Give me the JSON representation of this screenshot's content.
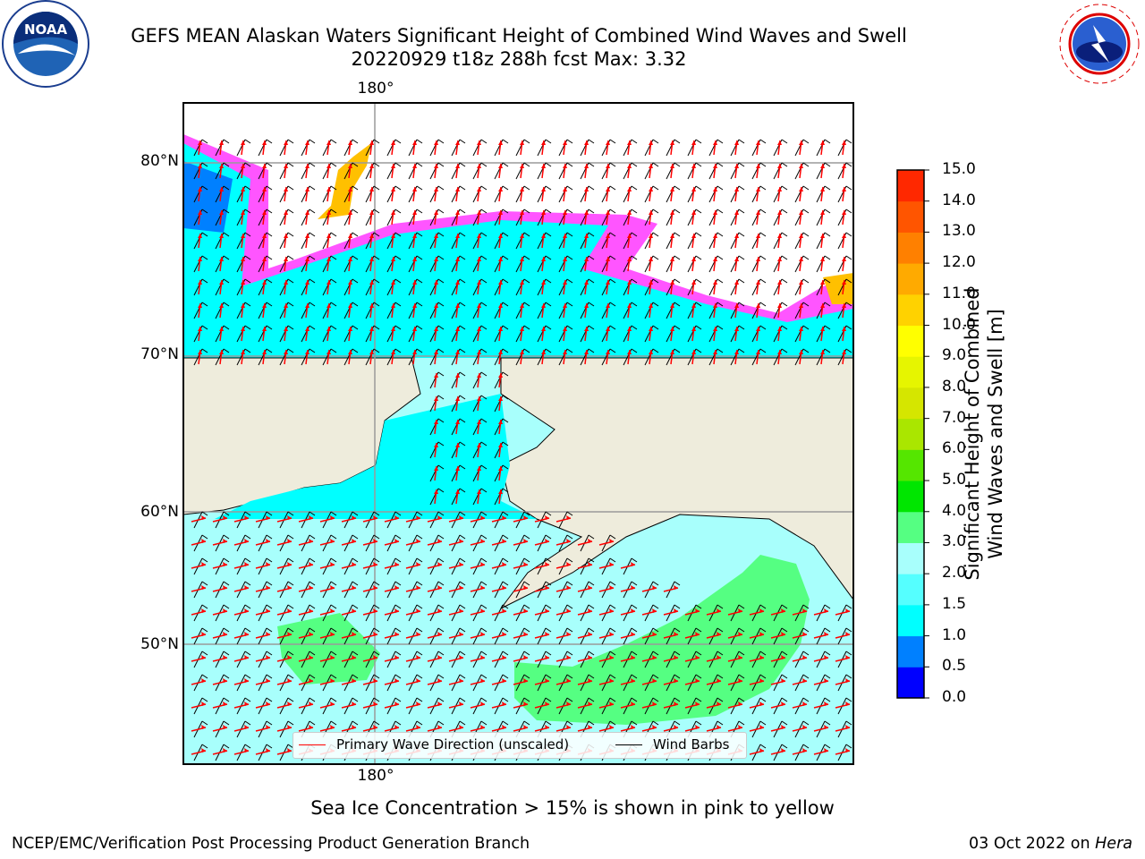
{
  "title": {
    "line1": "GEFS MEAN Alaskan Waters Significant Height of Combined Wind Waves and Swell",
    "line2": "20220929 t18z 288h fcst   Max: 3.32"
  },
  "logos": {
    "left": {
      "name": "NOAA",
      "text": "NOAA"
    },
    "right": {
      "name": "National Weather Service",
      "text": "NATIONAL WEATHER SERVICE"
    }
  },
  "map": {
    "lat_labels": [
      "80°N",
      "70°N",
      "60°N",
      "50°N"
    ],
    "lon_label_top": "180°",
    "lon_label_bottom": "180°",
    "colors": {
      "land": "#eeecdc",
      "ocean_low": "#00ffff",
      "ocean_mid": "#a8fffc",
      "ocean_high": "#55ff82",
      "ice_edge": "#ff55ff",
      "wave_arrow": "#ff0000",
      "wind_barb": "#000000"
    },
    "legend": {
      "wave_direction": "Primary Wave Direction (unscaled)",
      "wind_barbs": "Wind Barbs"
    }
  },
  "colorbar": {
    "label_line1": "Significant Height of Combined",
    "label_line2": "Wind Waves and Swell [m]",
    "ticks": [
      "15.0",
      "14.0",
      "13.0",
      "12.0",
      "11.0",
      "10.0",
      "9.0",
      "8.0",
      "7.0",
      "6.0",
      "5.0",
      "4.0",
      "3.0",
      "2.0",
      "1.5",
      "1.0",
      "0.5",
      "0.0"
    ],
    "colors": [
      "#0000ff",
      "#0080ff",
      "#00ffff",
      "#55ffff",
      "#a8fffc",
      "#55ff82",
      "#00e600",
      "#55e600",
      "#aae600",
      "#d5e600",
      "#e6f500",
      "#ffff00",
      "#ffd200",
      "#ffaa00",
      "#ff8000",
      "#ff5500",
      "#ff2800"
    ]
  },
  "footnote": "Sea Ice Concentration > 15% is shown in pink to yellow",
  "credit_left": "NCEP/EMC/Verification Post Processing Product Generation Branch",
  "credit_right_date": "03 Oct 2022 on ",
  "credit_right_host": "Hera"
}
